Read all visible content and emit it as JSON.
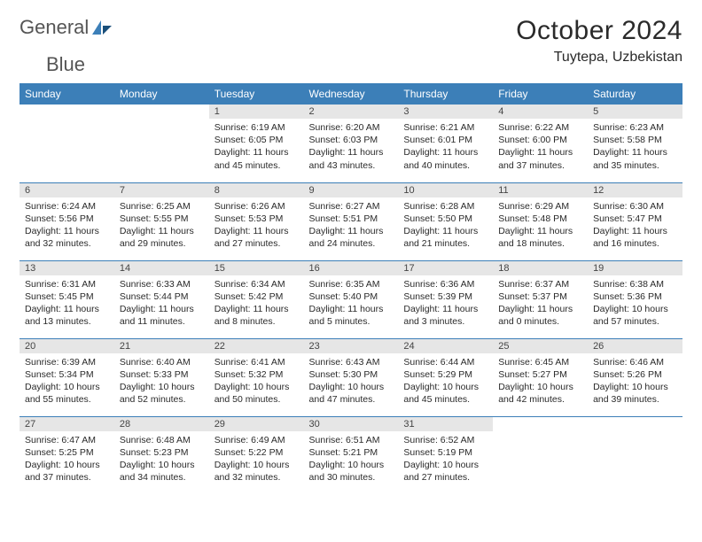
{
  "brand": {
    "word1": "General",
    "word2": "Blue"
  },
  "title": "October 2024",
  "location": "Tuytepa, Uzbekistan",
  "colors": {
    "header_bg": "#3c7fb8",
    "header_fg": "#ffffff",
    "daynum_bg": "#e6e6e6",
    "cell_border": "#3c7fb8",
    "page_bg": "#ffffff",
    "text": "#2a2a2a",
    "logo_gray": "#555555",
    "logo_blue": "#3c7fb8"
  },
  "weekdays": [
    "Sunday",
    "Monday",
    "Tuesday",
    "Wednesday",
    "Thursday",
    "Friday",
    "Saturday"
  ],
  "row_label_prefixes": {
    "sunrise": "Sunrise: ",
    "sunset": "Sunset: ",
    "daylight": "Daylight: "
  },
  "weeks": [
    [
      null,
      null,
      {
        "n": "1",
        "sr": "6:19 AM",
        "ss": "6:05 PM",
        "dl": "11 hours and 45 minutes."
      },
      {
        "n": "2",
        "sr": "6:20 AM",
        "ss": "6:03 PM",
        "dl": "11 hours and 43 minutes."
      },
      {
        "n": "3",
        "sr": "6:21 AM",
        "ss": "6:01 PM",
        "dl": "11 hours and 40 minutes."
      },
      {
        "n": "4",
        "sr": "6:22 AM",
        "ss": "6:00 PM",
        "dl": "11 hours and 37 minutes."
      },
      {
        "n": "5",
        "sr": "6:23 AM",
        "ss": "5:58 PM",
        "dl": "11 hours and 35 minutes."
      }
    ],
    [
      {
        "n": "6",
        "sr": "6:24 AM",
        "ss": "5:56 PM",
        "dl": "11 hours and 32 minutes."
      },
      {
        "n": "7",
        "sr": "6:25 AM",
        "ss": "5:55 PM",
        "dl": "11 hours and 29 minutes."
      },
      {
        "n": "8",
        "sr": "6:26 AM",
        "ss": "5:53 PM",
        "dl": "11 hours and 27 minutes."
      },
      {
        "n": "9",
        "sr": "6:27 AM",
        "ss": "5:51 PM",
        "dl": "11 hours and 24 minutes."
      },
      {
        "n": "10",
        "sr": "6:28 AM",
        "ss": "5:50 PM",
        "dl": "11 hours and 21 minutes."
      },
      {
        "n": "11",
        "sr": "6:29 AM",
        "ss": "5:48 PM",
        "dl": "11 hours and 18 minutes."
      },
      {
        "n": "12",
        "sr": "6:30 AM",
        "ss": "5:47 PM",
        "dl": "11 hours and 16 minutes."
      }
    ],
    [
      {
        "n": "13",
        "sr": "6:31 AM",
        "ss": "5:45 PM",
        "dl": "11 hours and 13 minutes."
      },
      {
        "n": "14",
        "sr": "6:33 AM",
        "ss": "5:44 PM",
        "dl": "11 hours and 11 minutes."
      },
      {
        "n": "15",
        "sr": "6:34 AM",
        "ss": "5:42 PM",
        "dl": "11 hours and 8 minutes."
      },
      {
        "n": "16",
        "sr": "6:35 AM",
        "ss": "5:40 PM",
        "dl": "11 hours and 5 minutes."
      },
      {
        "n": "17",
        "sr": "6:36 AM",
        "ss": "5:39 PM",
        "dl": "11 hours and 3 minutes."
      },
      {
        "n": "18",
        "sr": "6:37 AM",
        "ss": "5:37 PM",
        "dl": "11 hours and 0 minutes."
      },
      {
        "n": "19",
        "sr": "6:38 AM",
        "ss": "5:36 PM",
        "dl": "10 hours and 57 minutes."
      }
    ],
    [
      {
        "n": "20",
        "sr": "6:39 AM",
        "ss": "5:34 PM",
        "dl": "10 hours and 55 minutes."
      },
      {
        "n": "21",
        "sr": "6:40 AM",
        "ss": "5:33 PM",
        "dl": "10 hours and 52 minutes."
      },
      {
        "n": "22",
        "sr": "6:41 AM",
        "ss": "5:32 PM",
        "dl": "10 hours and 50 minutes."
      },
      {
        "n": "23",
        "sr": "6:43 AM",
        "ss": "5:30 PM",
        "dl": "10 hours and 47 minutes."
      },
      {
        "n": "24",
        "sr": "6:44 AM",
        "ss": "5:29 PM",
        "dl": "10 hours and 45 minutes."
      },
      {
        "n": "25",
        "sr": "6:45 AM",
        "ss": "5:27 PM",
        "dl": "10 hours and 42 minutes."
      },
      {
        "n": "26",
        "sr": "6:46 AM",
        "ss": "5:26 PM",
        "dl": "10 hours and 39 minutes."
      }
    ],
    [
      {
        "n": "27",
        "sr": "6:47 AM",
        "ss": "5:25 PM",
        "dl": "10 hours and 37 minutes."
      },
      {
        "n": "28",
        "sr": "6:48 AM",
        "ss": "5:23 PM",
        "dl": "10 hours and 34 minutes."
      },
      {
        "n": "29",
        "sr": "6:49 AM",
        "ss": "5:22 PM",
        "dl": "10 hours and 32 minutes."
      },
      {
        "n": "30",
        "sr": "6:51 AM",
        "ss": "5:21 PM",
        "dl": "10 hours and 30 minutes."
      },
      {
        "n": "31",
        "sr": "6:52 AM",
        "ss": "5:19 PM",
        "dl": "10 hours and 27 minutes."
      },
      null,
      null
    ]
  ]
}
